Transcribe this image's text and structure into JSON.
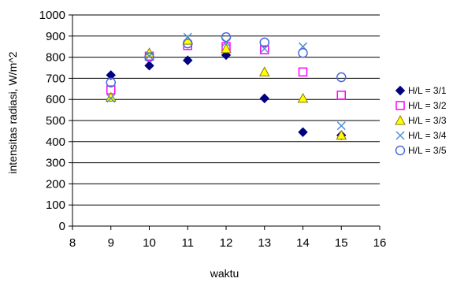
{
  "chart_data": {
    "type": "scatter",
    "title": "",
    "xlabel": "waktu",
    "ylabel": "intensitas radiasi, W/m^2",
    "xlim": [
      8,
      16
    ],
    "ylim": [
      0,
      1000
    ],
    "x_ticks": [
      "8",
      "9",
      "10",
      "11",
      "12",
      "13",
      "14",
      "15",
      "16"
    ],
    "y_ticks": [
      "0",
      "100",
      "200",
      "300",
      "400",
      "500",
      "600",
      "700",
      "800",
      "900",
      "1000"
    ],
    "grid": "horizontal",
    "legend_position": "right",
    "x": [
      9,
      10,
      11,
      12,
      13,
      14,
      15
    ],
    "series": [
      {
        "name": "H/L = 3/1",
        "marker": "diamond",
        "color": "#000080",
        "values": [
          715,
          760,
          785,
          810,
          605,
          445,
          430
        ]
      },
      {
        "name": "H/L = 3/2",
        "marker": "square",
        "color": "#ff00ff",
        "values": [
          645,
          805,
          855,
          850,
          835,
          730,
          620
        ]
      },
      {
        "name": "H/L = 3/3",
        "marker": "triangle",
        "color": "#ffff00",
        "values": [
          610,
          820,
          880,
          840,
          730,
          605,
          430
        ]
      },
      {
        "name": "H/L = 3/4",
        "marker": "x",
        "color": "#4f8fd6",
        "values": [
          605,
          805,
          895,
          870,
          840,
          850,
          475
        ]
      },
      {
        "name": "H/L = 3/5",
        "marker": "circle",
        "color": "#4a6ad8",
        "values": [
          680,
          800,
          865,
          895,
          870,
          820,
          705
        ]
      }
    ]
  }
}
